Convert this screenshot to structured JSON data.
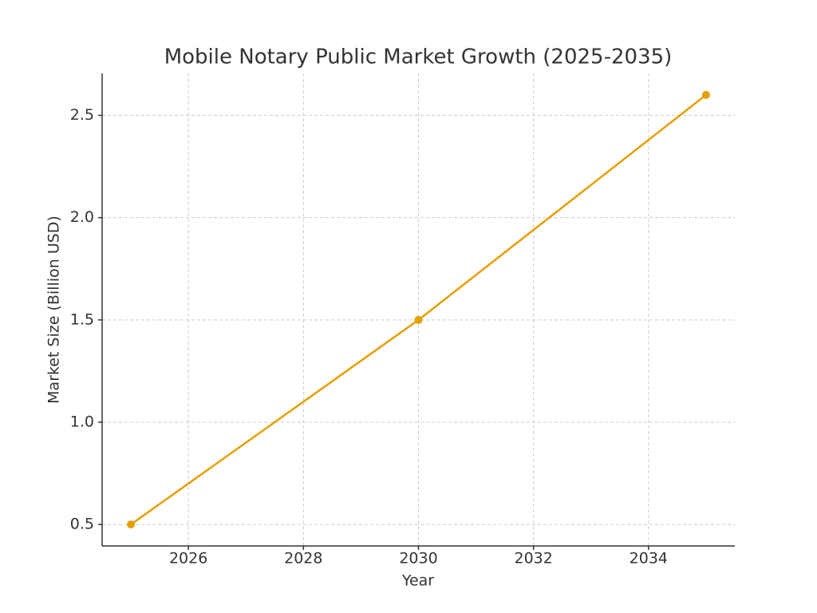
{
  "chart_data": {
    "type": "line",
    "title": "Mobile Notary Public Market Growth (2025-2035)",
    "x_label": "Year",
    "y_label": "Market Size (Billion USD)",
    "x": [
      2025,
      2030,
      2035
    ],
    "series": [
      {
        "name": "Market Size",
        "color": "#e69f00",
        "values": [
          0.5,
          1.5,
          2.6
        ]
      }
    ],
    "xlim": [
      2024.5,
      2035.5
    ],
    "xticks": [
      2026,
      2028,
      2030,
      2032,
      2034
    ],
    "ylim": [
      0.395,
      2.705
    ],
    "yticks": [
      0.5,
      {
        "value": 1.0,
        "label": "1.0"
      },
      1.5,
      {
        "value": 2.0,
        "label": "2.0"
      },
      2.5
    ],
    "grid": true
  }
}
